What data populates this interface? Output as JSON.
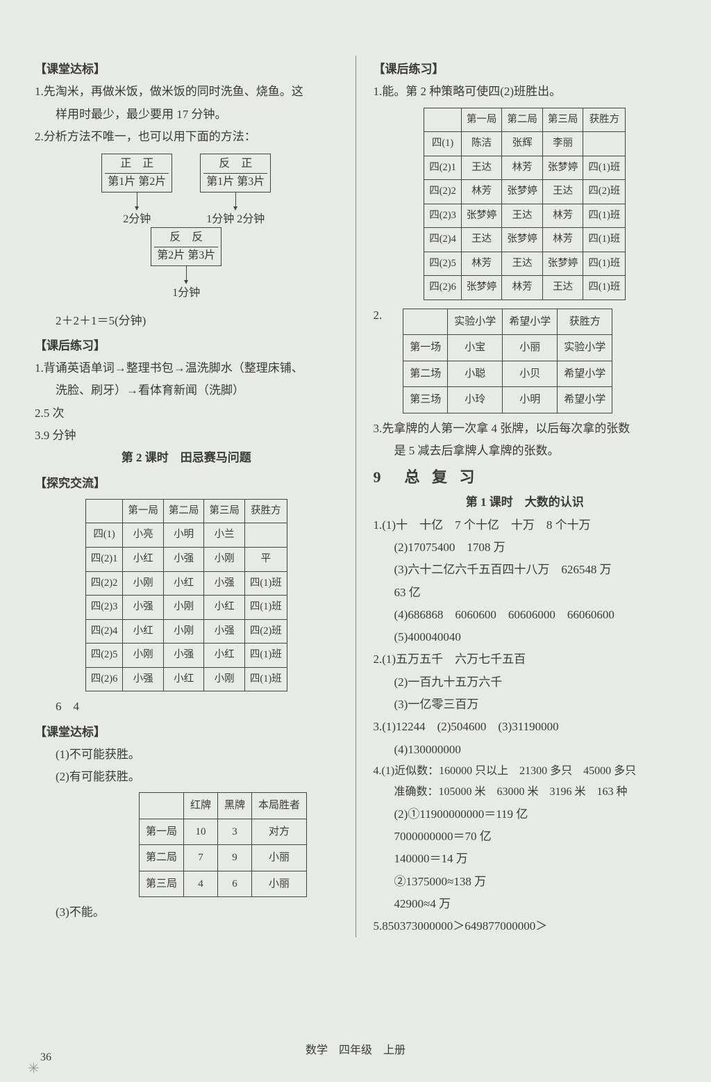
{
  "left": {
    "h1": "【课堂达标】",
    "p1a": "1.先淘米，再做米饭，做米饭的同时洗鱼、烧鱼。这",
    "p1b": "样用时最少，最少要用 17 分钟。",
    "p2": "2.分析方法不唯一，也可以用下面的方法：",
    "diag": {
      "b1a": "正　正",
      "b1b": "第1片 第2片",
      "b2a": "反　正",
      "b2b": "第1片 第3片",
      "t1": "2分钟",
      "t2": "1分钟 2分钟",
      "b3a": "反　反",
      "b3b": "第2片 第3片",
      "t3": "1分钟"
    },
    "eq": "2＋2＋1＝5(分钟)",
    "h2": "【课后练习】",
    "p3a": "1.背诵英语单词→整理书包→温洗脚水（整理床铺、",
    "p3b": "洗脸、刷牙）→看体育新闻（洗脚）",
    "p4": "2.5 次",
    "p5": "3.9 分钟",
    "title2": "第 2 课时　田忌赛马问题",
    "h3": "【探究交流】",
    "table1": {
      "head": [
        "",
        "第一局",
        "第二局",
        "第三局",
        "获胜方"
      ],
      "rows": [
        [
          "四(1)",
          "小亮",
          "小明",
          "小兰",
          ""
        ],
        [
          "四(2)1",
          "小红",
          "小强",
          "小刚",
          "平"
        ],
        [
          "四(2)2",
          "小刚",
          "小红",
          "小强",
          "四(1)班"
        ],
        [
          "四(2)3",
          "小强",
          "小刚",
          "小红",
          "四(1)班"
        ],
        [
          "四(2)4",
          "小红",
          "小刚",
          "小强",
          "四(2)班"
        ],
        [
          "四(2)5",
          "小刚",
          "小强",
          "小红",
          "四(1)班"
        ],
        [
          "四(2)6",
          "小强",
          "小红",
          "小刚",
          "四(1)班"
        ]
      ]
    },
    "p6": "6　4",
    "h4": "【课堂达标】",
    "p7": "(1)不可能获胜。",
    "p8": "(2)有可能获胜。",
    "table2": {
      "head": [
        "",
        "红牌",
        "黑牌",
        "本局胜者"
      ],
      "rows": [
        [
          "第一局",
          "10",
          "3",
          "对方"
        ],
        [
          "第二局",
          "7",
          "9",
          "小丽"
        ],
        [
          "第三局",
          "4",
          "6",
          "小丽"
        ]
      ]
    },
    "p9": "(3)不能。"
  },
  "right": {
    "h1": "【课后练习】",
    "p1": "1.能。第 2 种策略可使四(2)班胜出。",
    "table1": {
      "head": [
        "",
        "第一局",
        "第二局",
        "第三局",
        "获胜方"
      ],
      "rows": [
        [
          "四(1)",
          "陈洁",
          "张辉",
          "李丽",
          ""
        ],
        [
          "四(2)1",
          "王达",
          "林芳",
          "张梦婷",
          "四(1)班"
        ],
        [
          "四(2)2",
          "林芳",
          "张梦婷",
          "王达",
          "四(2)班"
        ],
        [
          "四(2)3",
          "张梦婷",
          "王达",
          "林芳",
          "四(1)班"
        ],
        [
          "四(2)4",
          "王达",
          "张梦婷",
          "林芳",
          "四(1)班"
        ],
        [
          "四(2)5",
          "林芳",
          "王达",
          "张梦婷",
          "四(1)班"
        ],
        [
          "四(2)6",
          "张梦婷",
          "林芳",
          "王达",
          "四(1)班"
        ]
      ]
    },
    "p2": "2.",
    "table2": {
      "head": [
        "",
        "实验小学",
        "希望小学",
        "获胜方"
      ],
      "rows": [
        [
          "第一场",
          "小宝",
          "小丽",
          "实验小学"
        ],
        [
          "第二场",
          "小聪",
          "小贝",
          "希望小学"
        ],
        [
          "第三场",
          "小玲",
          "小明",
          "希望小学"
        ]
      ]
    },
    "p3a": "3.先拿牌的人第一次拿 4 张牌，以后每次拿的张数",
    "p3b": "是 5 减去后拿牌人拿牌的张数。",
    "title9": "9　总 复 习",
    "subtitle": "第 1 课时　大数的认识",
    "l1": "1.(1)十　十亿　7 个十亿　十万　8 个十万",
    "l2": "(2)17075400　1708 万",
    "l3": "(3)六十二亿六千五百四十八万　626548 万",
    "l4": "63 亿",
    "l5": "(4)686868　6060600　60606000　66060600",
    "l6": "(5)400040040",
    "l7": "2.(1)五万五千　六万七千五百",
    "l8": "(2)一百九十五万六千",
    "l9": "(3)一亿零三百万",
    "l10": "3.(1)12244　(2)504600　(3)31190000",
    "l11": "(4)130000000",
    "l12": "4.(1)近似数：160000 只以上　21300 多只　45000 多只",
    "l13": "准确数：105000 米　63000 米　3196 米　163 种",
    "l14": "(2)①11900000000＝119 亿",
    "l15": "7000000000＝70 亿",
    "l16": "140000＝14 万",
    "l17": "②1375000≈138 万",
    "l18": "42900≈4 万",
    "l19": "5.850373000000＞649877000000＞"
  },
  "footer": "数学　四年级　上册",
  "pagenum": "36"
}
